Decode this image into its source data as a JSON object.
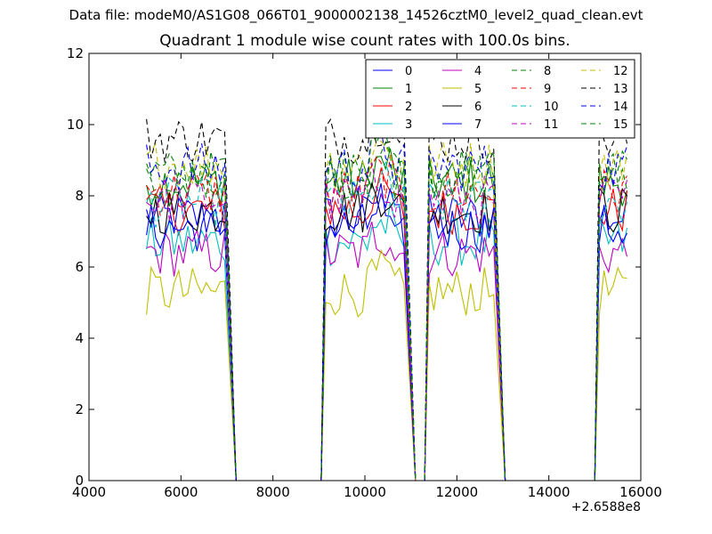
{
  "figure": {
    "suptitle": "Data file: modeM0/AS1G08_066T01_9000002138_14526cztM0_level2_quad_clean.evt"
  },
  "chart_data": {
    "type": "line",
    "title": "Quadrant 1 module wise count rates with 100.0s bins.",
    "xlabel": "",
    "ylabel": "",
    "x_offset_label": "+2.6588e8",
    "xlim": [
      4000,
      16000
    ],
    "ylim": [
      0,
      12
    ],
    "x_ticks": [
      4000,
      6000,
      8000,
      10000,
      12000,
      14000,
      16000
    ],
    "y_ticks": [
      0,
      2,
      4,
      6,
      8,
      10,
      12
    ],
    "grid": false,
    "legend": {
      "position": "top-right",
      "columns": 4
    },
    "segments": [
      {
        "start": 5250,
        "end": 6950,
        "drop_to": 7200
      },
      {
        "start": 9150,
        "end": 10900,
        "drop_to": 11100
      },
      {
        "start": 11400,
        "end": 12850,
        "drop_to": 13050
      },
      {
        "start": 15100,
        "end": 15750,
        "drop_to": 15750
      }
    ],
    "series": [
      {
        "name": "0",
        "color": "#0000ff",
        "style": "solid",
        "level": 7.4
      },
      {
        "name": "1",
        "color": "#008000",
        "style": "solid",
        "level": 8.4
      },
      {
        "name": "2",
        "color": "#ff0000",
        "style": "solid",
        "level": 7.6
      },
      {
        "name": "3",
        "color": "#00bfbf",
        "style": "solid",
        "level": 6.7
      },
      {
        "name": "4",
        "color": "#bf00bf",
        "style": "solid",
        "level": 6.4
      },
      {
        "name": "5",
        "color": "#bfbf00",
        "style": "solid",
        "level": 5.3
      },
      {
        "name": "6",
        "color": "#000000",
        "style": "solid",
        "level": 7.6
      },
      {
        "name": "7",
        "color": "#0000ff",
        "style": "solid",
        "level": 7.1
      },
      {
        "name": "8",
        "color": "#008000",
        "style": "dashed",
        "level": 8.6
      },
      {
        "name": "9",
        "color": "#ff0000",
        "style": "dashed",
        "level": 8.1
      },
      {
        "name": "10",
        "color": "#00bfbf",
        "style": "dashed",
        "level": 7.8
      },
      {
        "name": "11",
        "color": "#bf00bf",
        "style": "dashed",
        "level": 7.9
      },
      {
        "name": "12",
        "color": "#bfbf00",
        "style": "dashed",
        "level": 8.9
      },
      {
        "name": "13",
        "color": "#000000",
        "style": "dashed",
        "level": 9.6
      },
      {
        "name": "14",
        "color": "#0000ff",
        "style": "dashed",
        "level": 8.8
      },
      {
        "name": "15",
        "color": "#008000",
        "style": "dashed",
        "level": 8.6
      }
    ]
  }
}
